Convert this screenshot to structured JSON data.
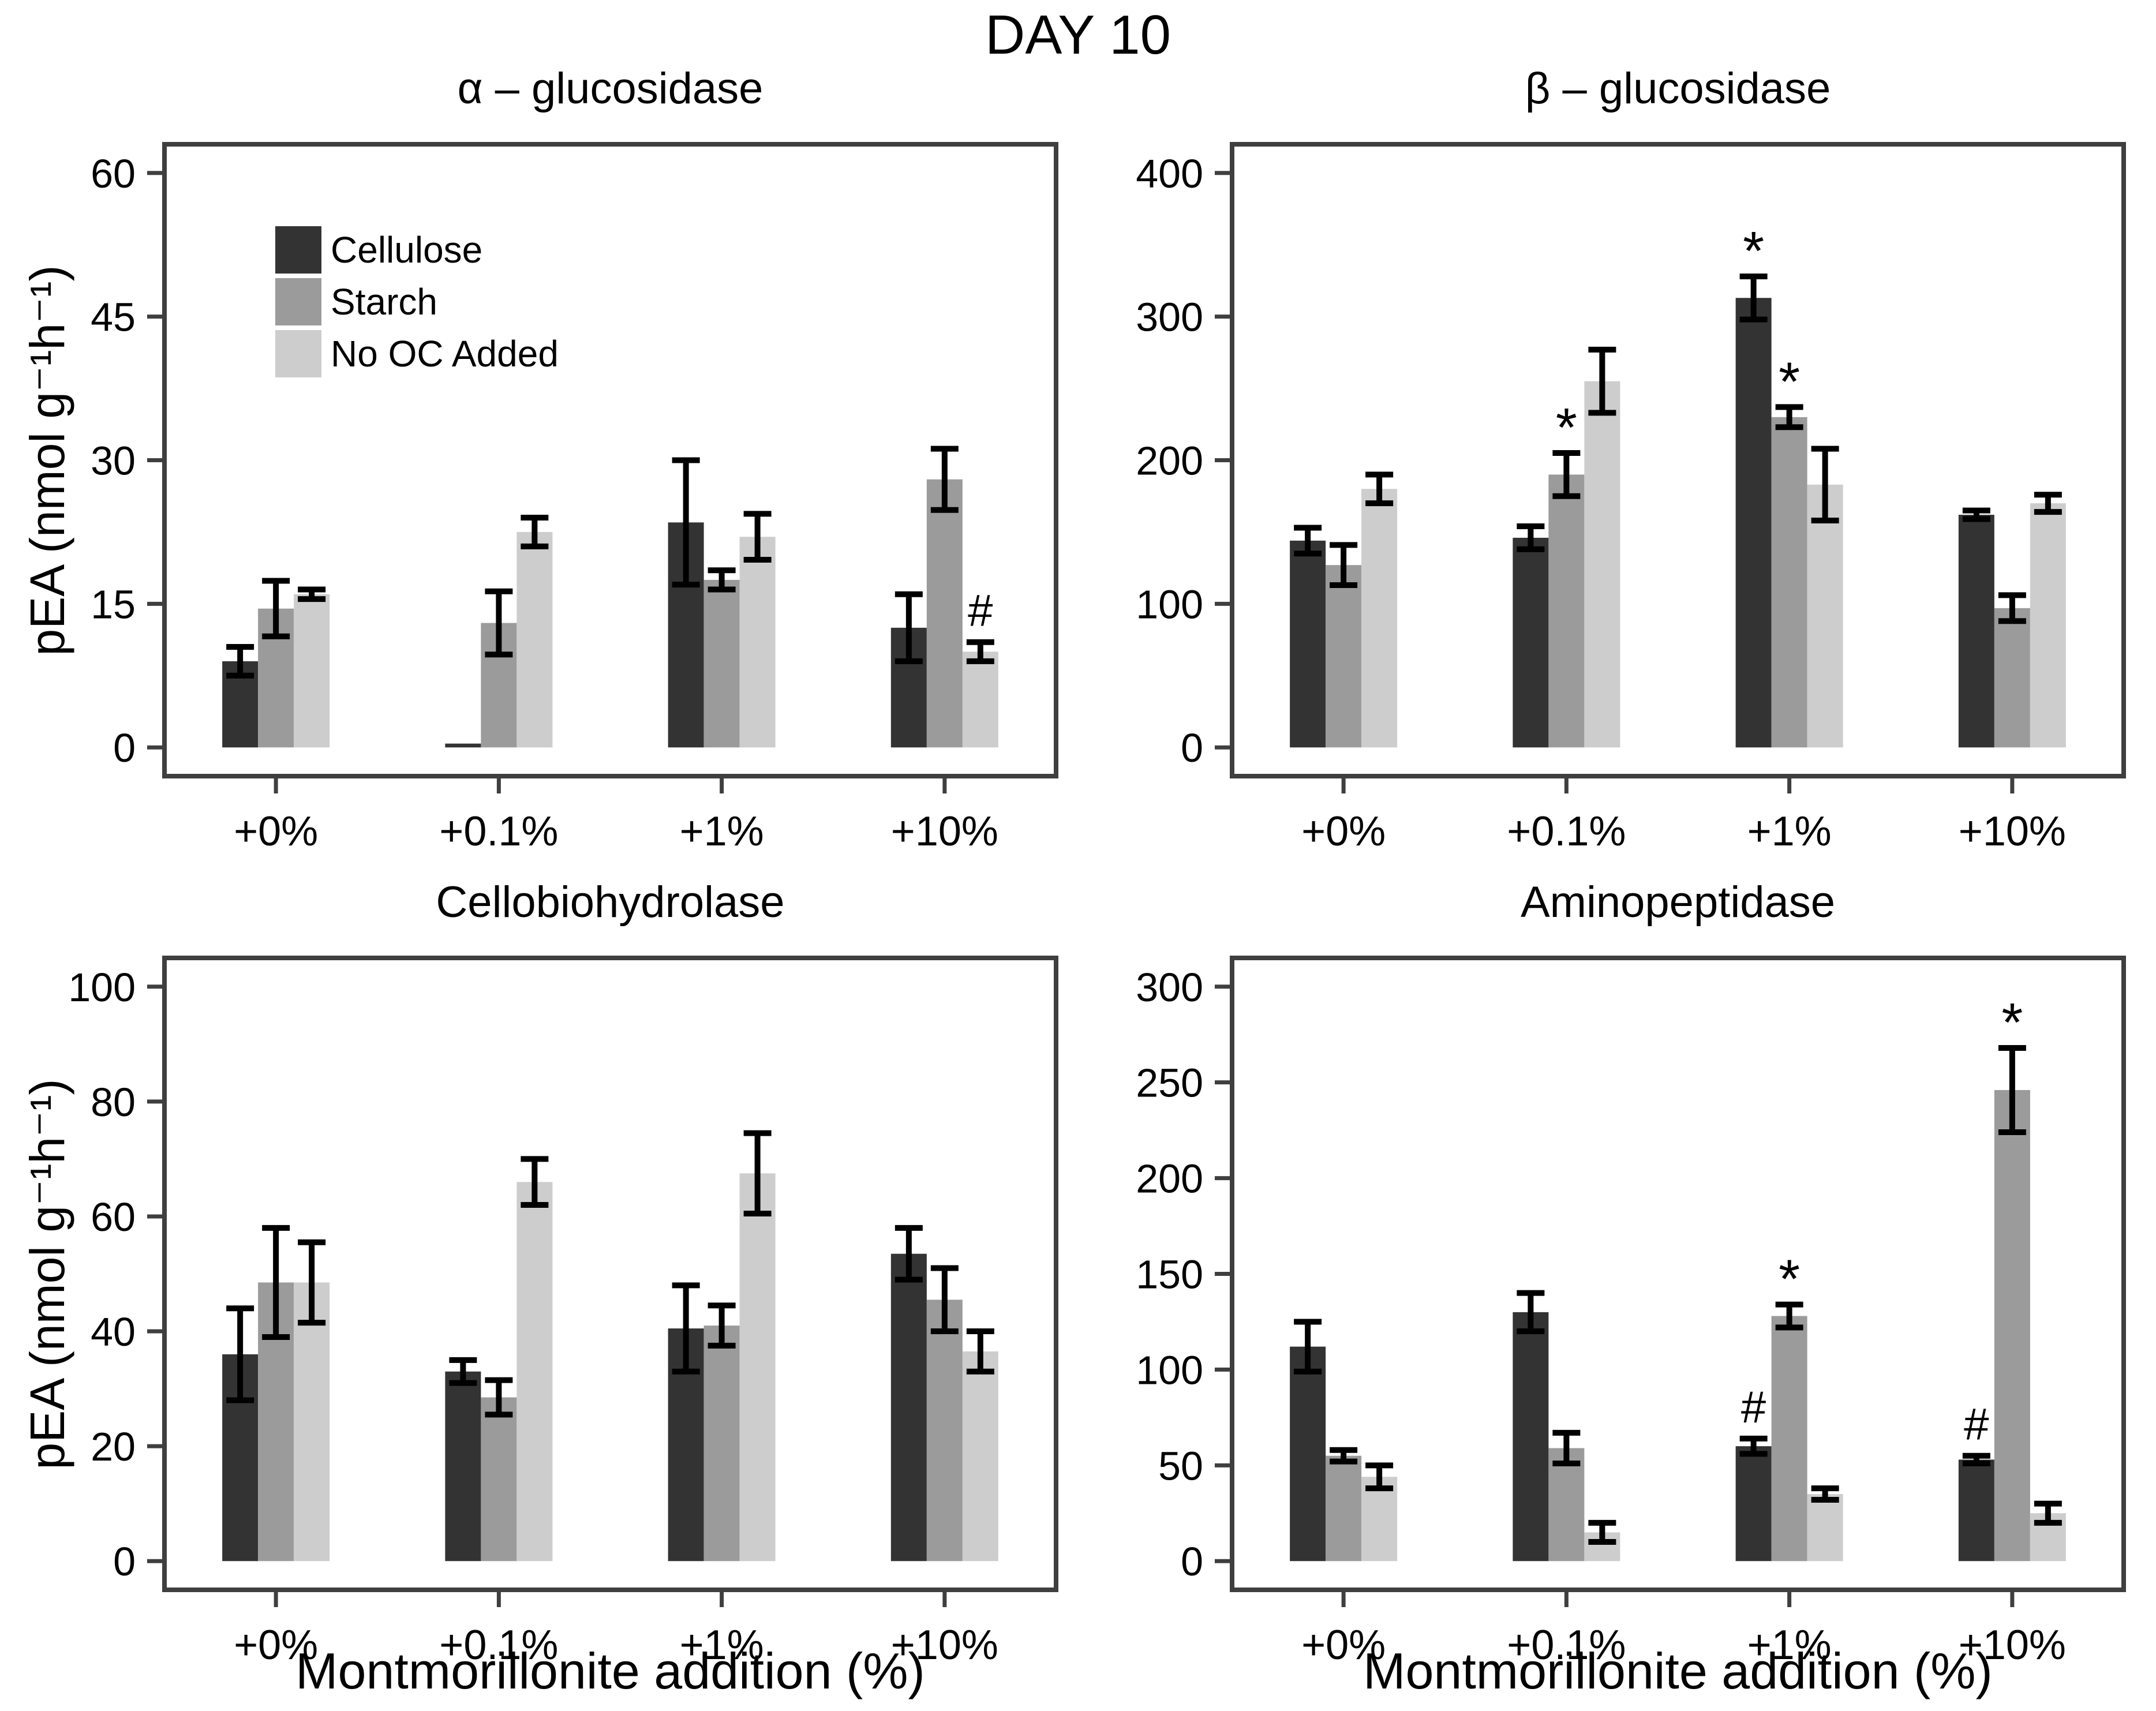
{
  "figure": {
    "title": "DAY 10",
    "x_axis_title": "Montmorillonite addition (%)",
    "y_axis_title": "pEA (nmol g⁻¹h⁻¹)"
  },
  "legend": {
    "position": "top-left of first panel",
    "items": [
      {
        "label": "Cellulose",
        "color": "#333333"
      },
      {
        "label": "Starch",
        "color": "#9b9b9b"
      },
      {
        "label": "No OC Added",
        "color": "#cdcdcd"
      }
    ]
  },
  "chart_data": {
    "type": "bar",
    "grid": false,
    "frame_color": "#3f3f3f",
    "error_bar_color": "#000000",
    "categories": [
      "+0%",
      "+0.1%",
      "+1%",
      "+10%"
    ],
    "series_names": [
      "Cellulose",
      "Starch",
      "No OC Added"
    ],
    "series_colors": [
      "#333333",
      "#9b9b9b",
      "#cdcdcd"
    ],
    "xlabel": "Montmorillonite addition (%)",
    "ylabel": "pEA (nmol g⁻¹h⁻¹)",
    "panels": [
      {
        "title": "α – glucosidase",
        "ylim": [
          0,
          63
        ],
        "yticks": [
          0,
          15,
          30,
          45,
          60
        ],
        "series": [
          {
            "name": "Cellulose",
            "values": [
              9,
              0.4,
              23.5,
              12.5
            ],
            "errors": [
              1.5,
              0,
              6.5,
              3.5
            ]
          },
          {
            "name": "Starch",
            "values": [
              14.5,
              13,
              17.5,
              28
            ],
            "errors": [
              2.9,
              3.3,
              1,
              3.2
            ]
          },
          {
            "name": "No OC Added",
            "values": [
              16,
              22.5,
              22,
              10
            ],
            "errors": [
              0.5,
              1.5,
              2.4,
              1
            ]
          }
        ],
        "annotations": [
          {
            "category": 3,
            "series": 2,
            "symbol": "#"
          }
        ]
      },
      {
        "title": "β – glucosidase",
        "ylim": [
          0,
          420
        ],
        "yticks": [
          0,
          100,
          200,
          300,
          400
        ],
        "series": [
          {
            "name": "Cellulose",
            "values": [
              144,
              146,
              313,
              162
            ],
            "errors": [
              9,
              8,
              15,
              3
            ]
          },
          {
            "name": "Starch",
            "values": [
              127,
              190,
              230,
              97
            ],
            "errors": [
              14,
              15,
              7,
              9
            ]
          },
          {
            "name": "No OC Added",
            "values": [
              180,
              255,
              183,
              170
            ],
            "errors": [
              10,
              22,
              25,
              6
            ]
          }
        ],
        "annotations": [
          {
            "category": 1,
            "series": 1,
            "symbol": "*"
          },
          {
            "category": 2,
            "series": 0,
            "symbol": "*"
          },
          {
            "category": 2,
            "series": 1,
            "symbol": "*"
          }
        ]
      },
      {
        "title": "Cellobiohydrolase",
        "ylim": [
          0,
          105
        ],
        "yticks": [
          0,
          20,
          40,
          60,
          80,
          100
        ],
        "series": [
          {
            "name": "Cellulose",
            "values": [
              36,
              33,
              40.5,
              53.5
            ],
            "errors": [
              8,
              2,
              7.5,
              4.5
            ]
          },
          {
            "name": "Starch",
            "values": [
              48.5,
              28.5,
              41,
              45.5
            ],
            "errors": [
              9.5,
              3,
              3.5,
              5.5
            ]
          },
          {
            "name": "No OC Added",
            "values": [
              48.5,
              66,
              67.5,
              36.5
            ],
            "errors": [
              7,
              4,
              7,
              3.5
            ]
          }
        ],
        "annotations": []
      },
      {
        "title": "Aminopeptidase",
        "ylim": [
          0,
          315
        ],
        "yticks": [
          0,
          50,
          100,
          150,
          200,
          250,
          300
        ],
        "series": [
          {
            "name": "Cellulose",
            "values": [
              112,
              130,
              60,
              53
            ],
            "errors": [
              13,
              10,
              4,
              2
            ]
          },
          {
            "name": "Starch",
            "values": [
              55,
              59,
              128,
              246
            ],
            "errors": [
              3,
              8,
              6,
              22
            ]
          },
          {
            "name": "No OC Added",
            "values": [
              44,
              15,
              35,
              25
            ],
            "errors": [
              6,
              5,
              3,
              5
            ]
          }
        ],
        "annotations": [
          {
            "category": 2,
            "series": 0,
            "symbol": "#"
          },
          {
            "category": 2,
            "series": 1,
            "symbol": "*"
          },
          {
            "category": 3,
            "series": 0,
            "symbol": "#"
          },
          {
            "category": 3,
            "series": 1,
            "symbol": "*"
          }
        ]
      }
    ]
  }
}
